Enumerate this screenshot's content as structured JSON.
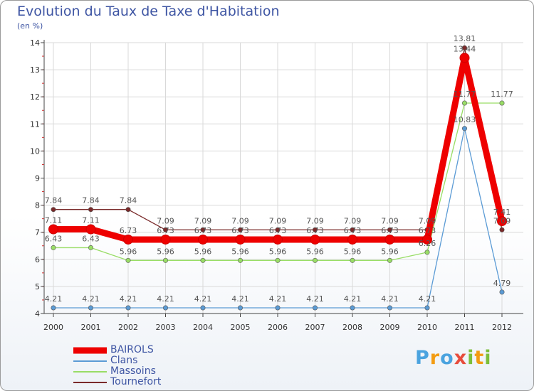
{
  "chart_data": {
    "type": "line",
    "title": "Evolution du Taux de Taxe d'Habitation",
    "subtitle": "(en %)",
    "categories": [
      "2000",
      "2001",
      "2002",
      "2003",
      "2004",
      "2005",
      "2006",
      "2007",
      "2008",
      "2009",
      "2010",
      "2011",
      "2012"
    ],
    "ylim": [
      4,
      14
    ],
    "yticks": [
      "4",
      "5",
      "6",
      "7",
      "8",
      "9",
      "10",
      "11",
      "12",
      "13",
      "14"
    ],
    "grid": true,
    "series": [
      {
        "name": "BAIROLS",
        "color": "#ee0000",
        "values": [
          7.11,
          7.11,
          6.73,
          6.73,
          6.73,
          6.73,
          6.73,
          6.73,
          6.73,
          6.73,
          6.73,
          13.44,
          7.41
        ],
        "labels": [
          "7.11",
          "7.11",
          "6.73",
          "6.73",
          "6.73",
          "6.73",
          "6.73",
          "6.73",
          "6.73",
          "6.73",
          "6.73",
          "13.44",
          "7.41"
        ]
      },
      {
        "name": "Clans",
        "color": "#5b9bd5",
        "values": [
          4.21,
          4.21,
          4.21,
          4.21,
          4.21,
          4.21,
          4.21,
          4.21,
          4.21,
          4.21,
          4.21,
          10.83,
          4.79
        ],
        "labels": [
          "4.21",
          "4.21",
          "4.21",
          "4.21",
          "4.21",
          "4.21",
          "4.21",
          "4.21",
          "4.21",
          "4.21",
          "4.21",
          "10.83",
          "4.79"
        ]
      },
      {
        "name": "Massoins",
        "color": "#99dd66",
        "values": [
          6.43,
          6.43,
          5.96,
          5.96,
          5.96,
          5.96,
          5.96,
          5.96,
          5.96,
          5.96,
          6.26,
          11.77,
          11.77
        ],
        "labels": [
          "6.43",
          "6.43",
          "5.96",
          "5.96",
          "5.96",
          "5.96",
          "5.96",
          "5.96",
          "5.96",
          "5.96",
          "6.26",
          "11.77",
          "11.77"
        ]
      },
      {
        "name": "Tournefort",
        "color": "#7a2a2a",
        "values": [
          7.84,
          7.84,
          7.84,
          7.09,
          7.09,
          7.09,
          7.09,
          7.09,
          7.09,
          7.09,
          7.09,
          13.81,
          7.09
        ],
        "labels": [
          "7.84",
          "7.84",
          "7.84",
          "7.09",
          "7.09",
          "7.09",
          "7.09",
          "7.09",
          "7.09",
          "7.09",
          "7.09",
          "13.81",
          "7.09"
        ]
      }
    ]
  },
  "logo": {
    "text": "Proxiti",
    "letters": [
      "P",
      "r",
      "o",
      "x",
      "i",
      "t",
      "i"
    ]
  }
}
